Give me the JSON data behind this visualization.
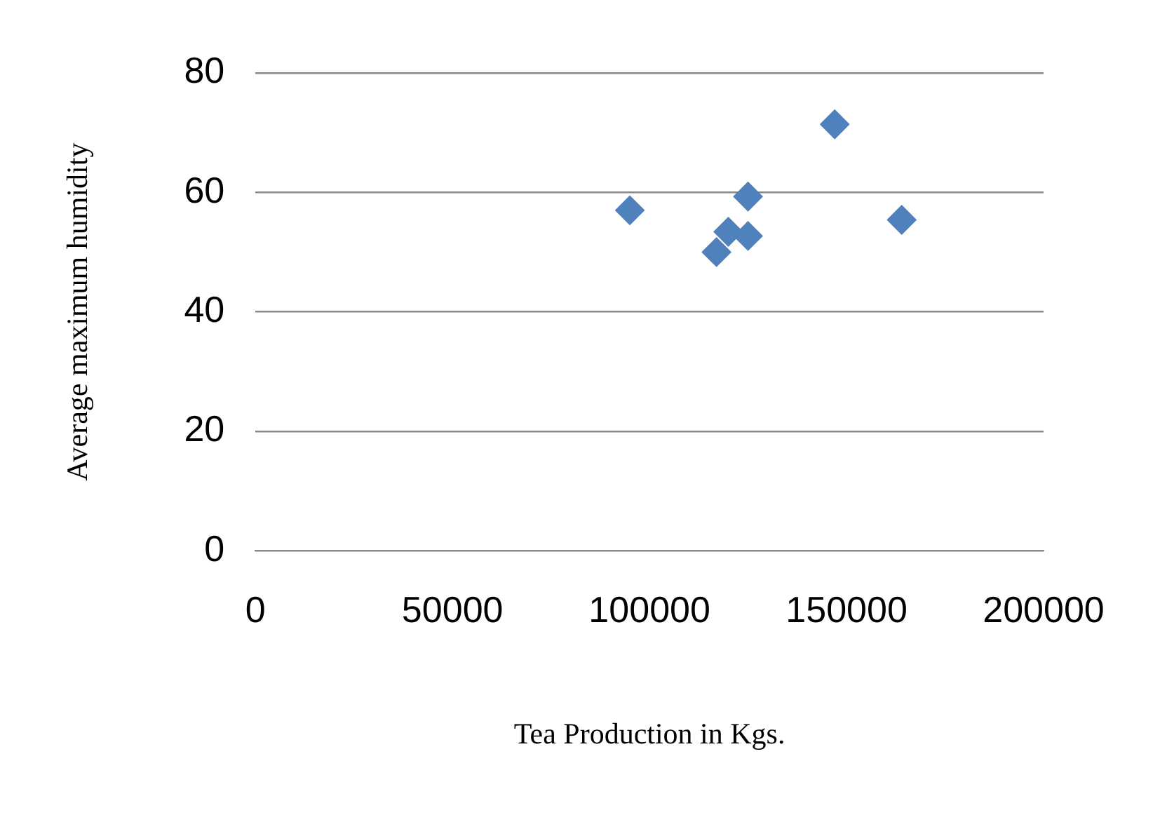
{
  "chart_data": {
    "type": "scatter",
    "xlabel": "Tea Production in Kgs.",
    "ylabel": "Average maximum humidity",
    "x": [
      95000,
      117000,
      120000,
      125000,
      125000,
      147000,
      164000
    ],
    "values": [
      57,
      50,
      53.4,
      59.3,
      52.7,
      71.4,
      55.4
    ],
    "color": "#4f81bd",
    "marker": "diamond",
    "xlim": [
      0,
      200000
    ],
    "xticks": [
      0,
      50000,
      100000,
      150000,
      200000
    ],
    "ylim": [
      0,
      80
    ],
    "yticks": [
      0,
      20,
      40,
      60,
      80
    ],
    "grid": "y",
    "legend": false
  }
}
